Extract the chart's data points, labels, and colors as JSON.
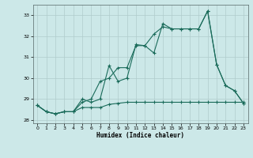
{
  "xlabel": "Humidex (Indice chaleur)",
  "bg_color": "#cce8e8",
  "grid_color": "#b0cccc",
  "line_color": "#1a6b5a",
  "xlim": [
    -0.5,
    23.5
  ],
  "ylim": [
    27.85,
    33.5
  ],
  "yticks": [
    28,
    29,
    30,
    31,
    32,
    33
  ],
  "xticks": [
    0,
    1,
    2,
    3,
    4,
    5,
    6,
    7,
    8,
    9,
    10,
    11,
    12,
    13,
    14,
    15,
    16,
    17,
    18,
    19,
    20,
    21,
    22,
    23
  ],
  "line1_x": [
    0,
    1,
    2,
    3,
    4,
    5,
    6,
    7,
    8,
    9,
    10,
    11,
    12,
    13,
    14,
    15,
    16,
    17,
    18,
    19,
    20,
    21,
    22,
    23
  ],
  "line1_y": [
    28.7,
    28.4,
    28.3,
    28.4,
    28.4,
    28.6,
    28.6,
    28.6,
    28.75,
    28.8,
    28.85,
    28.85,
    28.85,
    28.85,
    28.85,
    28.85,
    28.85,
    28.85,
    28.85,
    28.85,
    28.85,
    28.85,
    28.85,
    28.85
  ],
  "line2_x": [
    0,
    1,
    2,
    3,
    4,
    5,
    6,
    7,
    8,
    9,
    10,
    11,
    12,
    13,
    14,
    15,
    16,
    17,
    18,
    19,
    20,
    21,
    22,
    23
  ],
  "line2_y": [
    28.7,
    28.4,
    28.3,
    28.4,
    28.4,
    29.0,
    28.85,
    29.0,
    30.6,
    29.85,
    30.0,
    31.6,
    31.55,
    31.2,
    32.6,
    32.35,
    32.35,
    32.35,
    32.35,
    33.2,
    30.65,
    29.65,
    29.4,
    28.8
  ],
  "line3_x": [
    0,
    1,
    2,
    3,
    4,
    5,
    6,
    7,
    8,
    9,
    10,
    11,
    12,
    13,
    14,
    15,
    16,
    17,
    18,
    19,
    20,
    21,
    22,
    23
  ],
  "line3_y": [
    28.7,
    28.4,
    28.3,
    28.4,
    28.4,
    28.85,
    29.0,
    29.85,
    30.0,
    30.5,
    30.5,
    31.55,
    31.55,
    32.1,
    32.45,
    32.35,
    32.35,
    32.35,
    32.35,
    33.2,
    30.65,
    29.65,
    29.4,
    28.8
  ]
}
